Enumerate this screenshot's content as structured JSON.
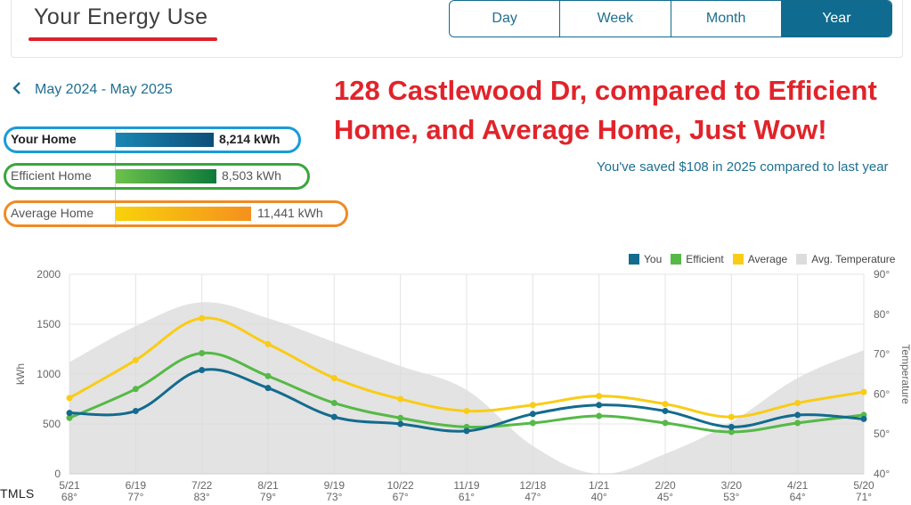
{
  "header": {
    "title": "Your Energy Use"
  },
  "tabs": [
    {
      "label": "Day",
      "active": false
    },
    {
      "label": "Week",
      "active": false
    },
    {
      "label": "Month",
      "active": false
    },
    {
      "label": "Year",
      "active": true
    }
  ],
  "range": {
    "back_icon": "chevron-left-icon",
    "label": "May 2024 - May 2025"
  },
  "headline": "128 Castlewood Dr, compared to Efficient Home, and Average Home, Just Wow!",
  "savings": "You've saved $108 in 2025 compared to last year",
  "comparison": [
    {
      "label": "Your Home",
      "value": "8,214 kWh",
      "kwh": 8214,
      "color": "#0f6b8f",
      "frame": "#1a9bd7"
    },
    {
      "label": "Efficient Home",
      "value": "8,503 kWh",
      "kwh": 8503,
      "color": "#3aa63a",
      "frame": "#3aa63a"
    },
    {
      "label": "Average Home",
      "value": "11,441 kWh",
      "kwh": 11441,
      "color": "#f5b400",
      "frame": "#f08a24"
    }
  ],
  "legend": [
    {
      "label": "You",
      "color": "#136b8e"
    },
    {
      "label": "Efficient",
      "color": "#56b947"
    },
    {
      "label": "Average",
      "color": "#f9cc16"
    },
    {
      "label": "Avg. Temperature",
      "color": "#dcdcdc"
    }
  ],
  "chart_data": {
    "type": "line",
    "ylabel": "kWh",
    "y2label": "Temperature",
    "ylim": [
      0,
      2000
    ],
    "yticks": [
      "0",
      "500",
      "1000",
      "1500",
      "2000"
    ],
    "y2lim": [
      40,
      90
    ],
    "y2ticks": [
      "40°",
      "50°",
      "60°",
      "70°",
      "80°",
      "90°"
    ],
    "categories": [
      "5/21",
      "6/19",
      "7/22",
      "8/21",
      "9/19",
      "10/22",
      "11/19",
      "12/18",
      "1/21",
      "2/20",
      "3/20",
      "4/21",
      "5/20"
    ],
    "temps": [
      "68°",
      "77°",
      "83°",
      "79°",
      "73°",
      "67°",
      "61°",
      "47°",
      "40°",
      "45°",
      "53°",
      "64°",
      "71°"
    ],
    "temp_values": [
      68,
      77,
      83,
      79,
      73,
      67,
      61,
      47,
      40,
      45,
      53,
      64,
      71
    ],
    "series": [
      {
        "name": "You",
        "color": "#136b8e",
        "values": [
          610,
          630,
          1040,
          860,
          570,
          500,
          430,
          600,
          690,
          630,
          470,
          590,
          550
        ]
      },
      {
        "name": "Efficient",
        "color": "#56b947",
        "values": [
          560,
          850,
          1210,
          980,
          710,
          560,
          470,
          510,
          580,
          510,
          420,
          510,
          590
        ]
      },
      {
        "name": "Average",
        "color": "#f9cc16",
        "values": [
          760,
          1140,
          1560,
          1300,
          960,
          750,
          630,
          690,
          780,
          700,
          570,
          710,
          820
        ]
      }
    ],
    "grid": true,
    "legend_position": "top-right"
  },
  "footer": {
    "mls_mark": "TMLS"
  }
}
